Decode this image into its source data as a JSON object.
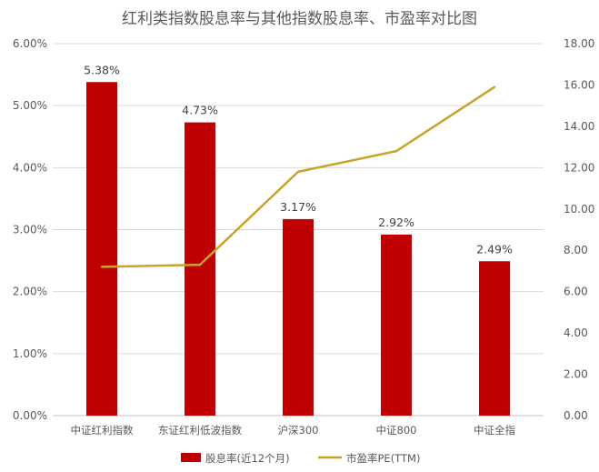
{
  "chart_data": {
    "type": "bar",
    "title": "红利类指数股息率与其他指数股息率、市盈率对比图",
    "categories": [
      "中证红利指数",
      "东证红利低波指数",
      "沪深300",
      "中证800",
      "中证全指"
    ],
    "series": [
      {
        "name": "股息率(近12个月)",
        "type": "bar",
        "axis": "left",
        "color": "#C00000",
        "values": [
          5.38,
          4.73,
          3.17,
          2.92,
          2.49
        ],
        "labels": [
          "5.38%",
          "4.73%",
          "3.17%",
          "2.92%",
          "2.49%"
        ]
      },
      {
        "name": "市盈率PE(TTM)",
        "type": "line",
        "axis": "right",
        "color": "#C9A227",
        "values": [
          7.2,
          7.3,
          11.8,
          12.8,
          15.9
        ]
      }
    ],
    "y_left": {
      "ylim": [
        0,
        6
      ],
      "ticks": [
        "0.00%",
        "1.00%",
        "2.00%",
        "3.00%",
        "4.00%",
        "5.00%",
        "6.00%"
      ]
    },
    "y_right": {
      "ylim": [
        0,
        18
      ],
      "ticks": [
        "0.00",
        "2.00",
        "4.00",
        "6.00",
        "8.00",
        "10.00",
        "12.00",
        "14.00",
        "16.00",
        "18.00"
      ]
    },
    "grid": true,
    "legend_position": "bottom"
  }
}
